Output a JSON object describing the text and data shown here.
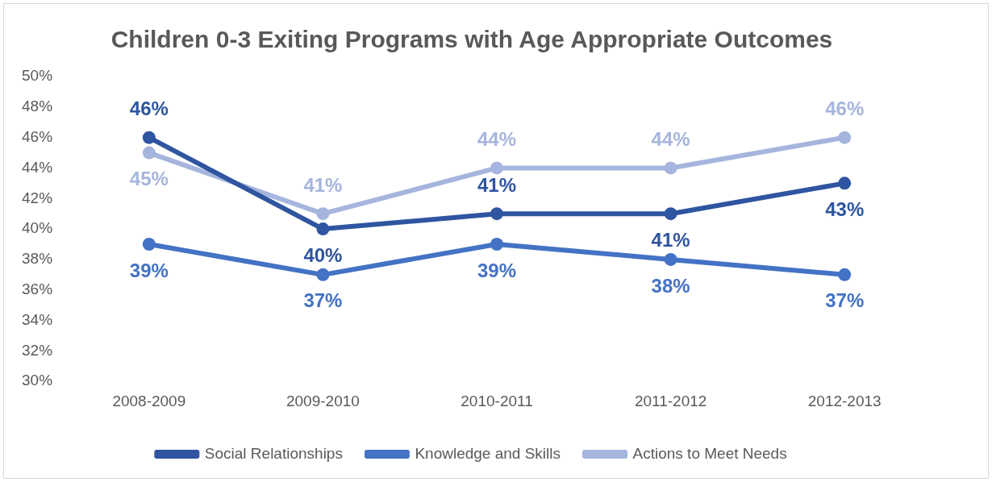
{
  "chart_data": {
    "type": "line",
    "title": "Children 0-3 Exiting Programs with Age Appropriate Outcomes",
    "categories": [
      "2008-2009",
      "2009-2010",
      "2010-2011",
      "2011-2012",
      "2012-2013"
    ],
    "series": [
      {
        "name": "Social Relationships",
        "color": "#2f55a0",
        "values": [
          46,
          40,
          41,
          41,
          43
        ],
        "value_labels": [
          "46%",
          "40%",
          "41%",
          "41%",
          "43%"
        ]
      },
      {
        "name": "Knowledge and Skills",
        "color": "#4472c4",
        "values": [
          39,
          37,
          39,
          38,
          37
        ],
        "value_labels": [
          "39%",
          "37%",
          "39%",
          "38%",
          "37%"
        ]
      },
      {
        "name": "Actions to Meet Needs",
        "color": "#a5b5dd",
        "values": [
          45,
          41,
          44,
          44,
          46
        ],
        "value_labels": [
          "45%",
          "41%",
          "44%",
          "44%",
          "46%"
        ]
      }
    ],
    "ylim": [
      30,
      50
    ],
    "yticks": [
      {
        "value": 30,
        "label": "30%"
      },
      {
        "value": 32,
        "label": "32%"
      },
      {
        "value": 34,
        "label": "34%"
      },
      {
        "value": 36,
        "label": "36%"
      },
      {
        "value": 38,
        "label": "38%"
      },
      {
        "value": 40,
        "label": "40%"
      },
      {
        "value": 42,
        "label": "42%"
      },
      {
        "value": 44,
        "label": "44%"
      },
      {
        "value": 46,
        "label": "46%"
      },
      {
        "value": 48,
        "label": "48%"
      },
      {
        "value": 50,
        "label": "50%"
      }
    ],
    "grid": false,
    "legend": "bottom",
    "marker": "circle",
    "line_style": "solid"
  }
}
